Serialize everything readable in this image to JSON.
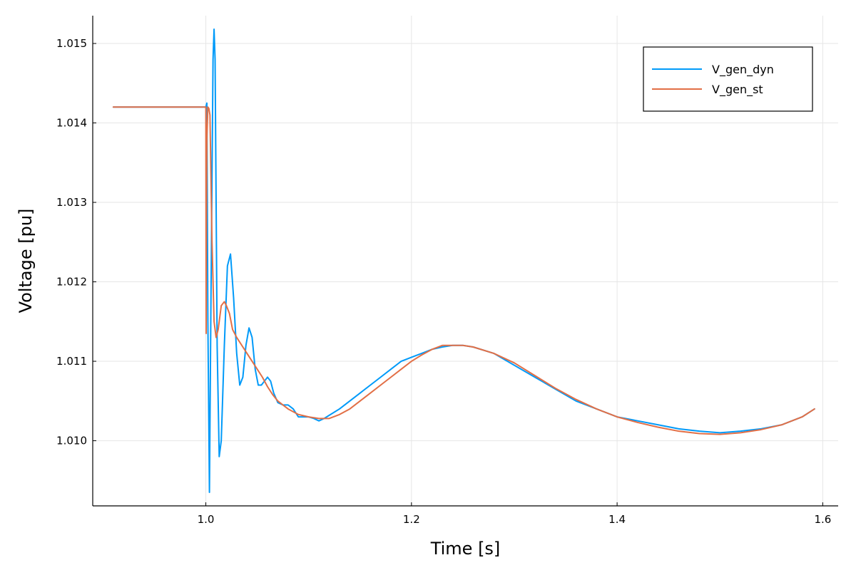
{
  "chart_data": {
    "type": "line",
    "xlabel": "Time [s]",
    "ylabel": "Voltage [pu]",
    "xlim": [
      0.89,
      1.615
    ],
    "ylim": [
      1.00918,
      1.01535
    ],
    "xticks": [
      1.0,
      1.2,
      1.4,
      1.6
    ],
    "xtick_labels": [
      "1.0",
      "1.2",
      "1.4",
      "1.6"
    ],
    "yticks": [
      1.01,
      1.011,
      1.012,
      1.013,
      1.014,
      1.015
    ],
    "ytick_labels": [
      "1.010",
      "1.011",
      "1.012",
      "1.013",
      "1.014",
      "1.015"
    ],
    "grid": true,
    "legend_position": "top-right",
    "series": [
      {
        "name": "V_gen_dyn",
        "color": "#009af9",
        "x": [
          0.91,
          0.95,
          1.0,
          1.001,
          1.002,
          1.0035,
          1.005,
          1.007,
          1.008,
          1.009,
          1.011,
          1.013,
          1.015,
          1.018,
          1.021,
          1.024,
          1.027,
          1.03,
          1.033,
          1.036,
          1.039,
          1.042,
          1.045,
          1.048,
          1.051,
          1.054,
          1.057,
          1.06,
          1.063,
          1.066,
          1.07,
          1.075,
          1.08,
          1.085,
          1.09,
          1.095,
          1.1,
          1.105,
          1.11,
          1.115,
          1.12,
          1.13,
          1.14,
          1.15,
          1.16,
          1.17,
          1.18,
          1.19,
          1.2,
          1.21,
          1.22,
          1.23,
          1.24,
          1.25,
          1.26,
          1.28,
          1.3,
          1.32,
          1.34,
          1.36,
          1.38,
          1.4,
          1.42,
          1.44,
          1.46,
          1.48,
          1.5,
          1.52,
          1.54,
          1.56,
          1.58,
          1.592
        ],
        "y": [
          1.0142,
          1.0142,
          1.0142,
          1.01425,
          1.0115,
          1.00935,
          1.0118,
          1.0148,
          1.01518,
          1.0148,
          1.0112,
          1.0098,
          1.01,
          1.0112,
          1.0122,
          1.01235,
          1.0118,
          1.0111,
          1.0107,
          1.0108,
          1.0112,
          1.01142,
          1.0113,
          1.0109,
          1.0107,
          1.0107,
          1.01075,
          1.0108,
          1.01075,
          1.0106,
          1.01048,
          1.01045,
          1.01045,
          1.0104,
          1.0103,
          1.0103,
          1.0103,
          1.01028,
          1.01025,
          1.01028,
          1.01032,
          1.0104,
          1.0105,
          1.0106,
          1.0107,
          1.0108,
          1.0109,
          1.011,
          1.01105,
          1.0111,
          1.01115,
          1.01118,
          1.0112,
          1.0112,
          1.01118,
          1.0111,
          1.01095,
          1.0108,
          1.01065,
          1.0105,
          1.0104,
          1.0103,
          1.01025,
          1.0102,
          1.01015,
          1.01012,
          1.0101,
          1.01012,
          1.01015,
          1.0102,
          1.0103,
          1.0104
        ]
      },
      {
        "name": "V_gen_st",
        "color": "#e26f46",
        "x": [
          0.91,
          0.95,
          1.0,
          1.0003,
          1.0006,
          1.001,
          1.002,
          1.003,
          1.004,
          1.006,
          1.008,
          1.01,
          1.012,
          1.015,
          1.018,
          1.02,
          1.023,
          1.026,
          1.03,
          1.035,
          1.04,
          1.045,
          1.05,
          1.055,
          1.06,
          1.065,
          1.07,
          1.08,
          1.09,
          1.1,
          1.11,
          1.12,
          1.13,
          1.14,
          1.15,
          1.16,
          1.17,
          1.18,
          1.19,
          1.2,
          1.21,
          1.22,
          1.23,
          1.24,
          1.25,
          1.26,
          1.28,
          1.3,
          1.32,
          1.34,
          1.36,
          1.38,
          1.4,
          1.42,
          1.44,
          1.46,
          1.48,
          1.5,
          1.52,
          1.54,
          1.56,
          1.58,
          1.592
        ],
        "y": [
          1.0142,
          1.0142,
          1.0142,
          1.01135,
          1.0128,
          1.0138,
          1.0142,
          1.01418,
          1.0141,
          1.0125,
          1.0115,
          1.0113,
          1.0114,
          1.0117,
          1.01175,
          1.0117,
          1.0116,
          1.0114,
          1.0113,
          1.0112,
          1.0111,
          1.011,
          1.0109,
          1.0108,
          1.01068,
          1.01058,
          1.0105,
          1.0104,
          1.01033,
          1.0103,
          1.01028,
          1.01028,
          1.01033,
          1.0104,
          1.0105,
          1.0106,
          1.0107,
          1.0108,
          1.0109,
          1.011,
          1.01108,
          1.01115,
          1.0112,
          1.0112,
          1.0112,
          1.01118,
          1.0111,
          1.01098,
          1.01082,
          1.01066,
          1.01052,
          1.0104,
          1.0103,
          1.01023,
          1.01017,
          1.01012,
          1.01009,
          1.01008,
          1.0101,
          1.01014,
          1.0102,
          1.0103,
          1.0104
        ]
      }
    ]
  }
}
